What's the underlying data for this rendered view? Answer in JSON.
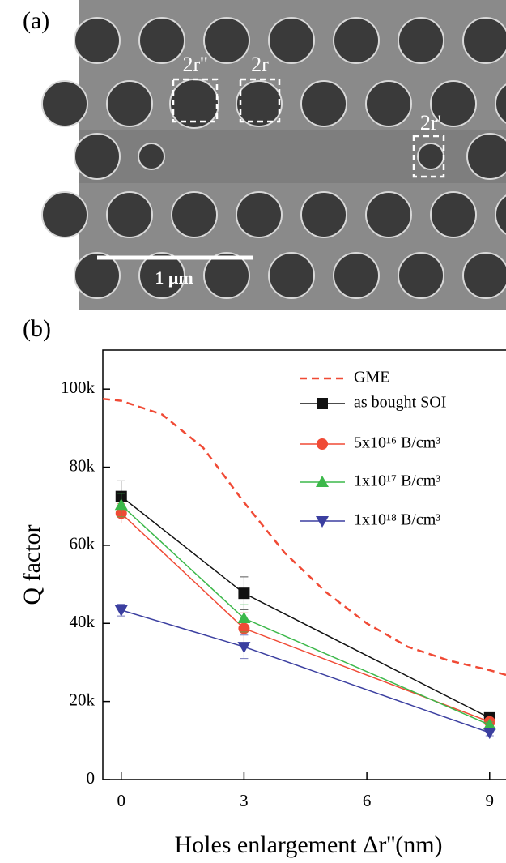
{
  "panel_a": {
    "label": "(a)",
    "annotations": [
      "2r''",
      "2r",
      "2r'"
    ],
    "scale_bar": "1 μm"
  },
  "chart_data": {
    "type": "line",
    "panel_label": "(b)",
    "x_label": "Holes enlargement Δr''(nm)",
    "y_label": "Q factor",
    "x": [
      0,
      3,
      9
    ],
    "xlim": [
      -0.45,
      9.4
    ],
    "xticks": [
      0,
      3,
      6,
      9
    ],
    "ylim": [
      0,
      110000
    ],
    "yticks": [
      0,
      {
        "value": 20000,
        "label": "20k"
      },
      {
        "value": 40000,
        "label": "40k"
      },
      {
        "value": 60000,
        "label": "60k"
      },
      {
        "value": 80000,
        "label": "80k"
      },
      {
        "value": 100000,
        "label": "100k"
      }
    ],
    "legend": "upper right",
    "series": [
      {
        "name": "GME",
        "color": "#f04a35",
        "style": "dashed",
        "x": [
          -0.45,
          0,
          1,
          2,
          3,
          4,
          5,
          6,
          7,
          8,
          9,
          9.4
        ],
        "values": [
          97500,
          97000,
          93500,
          85000,
          71000,
          58000,
          48000,
          40000,
          34000,
          30500,
          28000,
          26800
        ]
      },
      {
        "name": "as bought SOI",
        "color": "#111111",
        "marker": "square",
        "values": [
          72500,
          47700,
          15800
        ],
        "errors": [
          4000,
          4200,
          800
        ]
      },
      {
        "name": "5x10¹⁶ B/cm³",
        "color": "#f04a35",
        "marker": "circle",
        "values": [
          68200,
          38700,
          14800
        ],
        "errors": [
          2500,
          4000,
          800
        ]
      },
      {
        "name": "1x10¹⁷ B/cm³",
        "color": "#3cb84a",
        "marker": "triangle-up",
        "values": [
          70300,
          41300,
          14000
        ],
        "errors": [
          3000,
          3500,
          800
        ]
      },
      {
        "name": "1x10¹⁸ B/cm³",
        "color": "#3b3fa0",
        "marker": "triangle-down",
        "values": [
          43400,
          34000,
          12000
        ],
        "errors": [
          1500,
          3000,
          800
        ]
      }
    ]
  }
}
